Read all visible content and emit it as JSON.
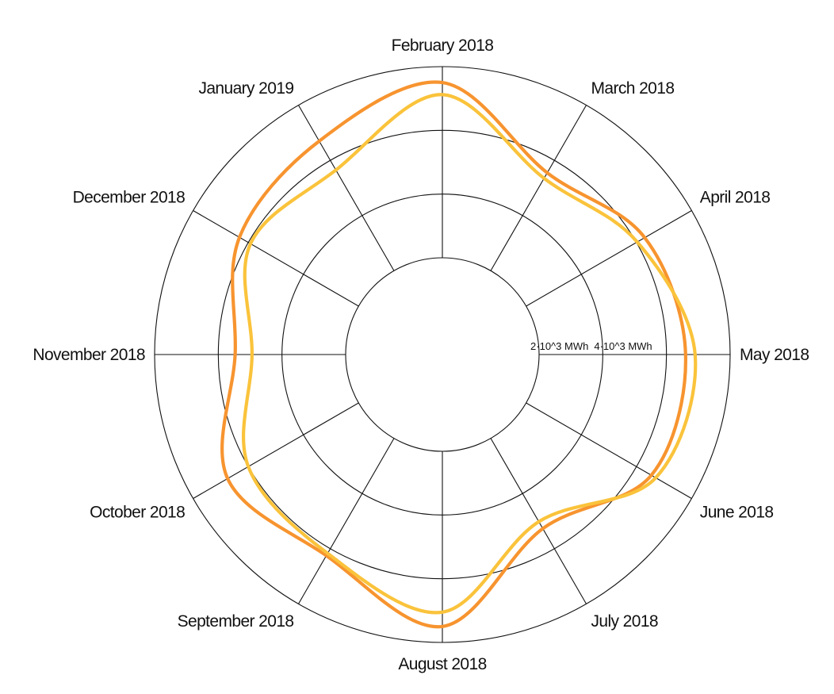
{
  "chart_data": {
    "type": "radial-line",
    "categories": [
      "February 2018",
      "March 2018",
      "April 2018",
      "May 2018",
      "June 2018",
      "July 2018",
      "August 2018",
      "September 2018",
      "October 2018",
      "November 2018",
      "December 2018",
      "January 2019"
    ],
    "ring_labels": [
      {
        "value": 2000,
        "label": "2·10^3 MWh"
      },
      {
        "value": 4000,
        "label": "4·10^3 MWh"
      }
    ],
    "rlim": [
      0,
      6000
    ],
    "series": [
      {
        "color": "#F7942F",
        "values": [
          5500,
          3550,
          4300,
          4600,
          4540,
          3270,
          5500,
          4250,
          4750,
          3470,
          4320,
          4700
        ]
      },
      {
        "color": "#FAC33B",
        "values": [
          5120,
          3350,
          4030,
          4900,
          4700,
          3020,
          5050,
          4170,
          4000,
          2940,
          3920,
          3650
        ]
      }
    ]
  }
}
